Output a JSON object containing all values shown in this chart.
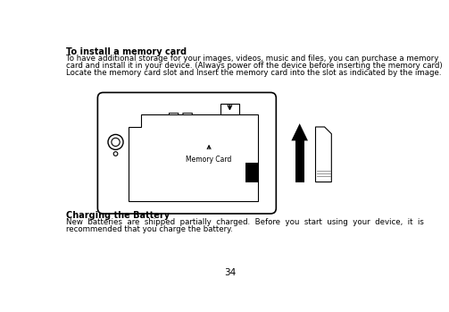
{
  "bg_color": "#ffffff",
  "title1": "To install a memory card",
  "body1_l1": "To have additional storage for your images, videos, music and files, you can purchase a memory",
  "body1_l2": "card and install it in your device. (Always power off the device before inserting the memory card)",
  "body1_l3": "Locate the memory card slot and Insert the memory card into the slot as indicated by the image.",
  "title2": "Charging the Battery",
  "body2_l1": "New  batteries  are  shipped  partially  charged.  Before  you  start  using  your  device,  it  is",
  "body2_l2": "recommended that you charge the battery.",
  "page_number": "34",
  "font_size_title": 7.0,
  "font_size_body": 6.2,
  "font_size_page": 7.5
}
